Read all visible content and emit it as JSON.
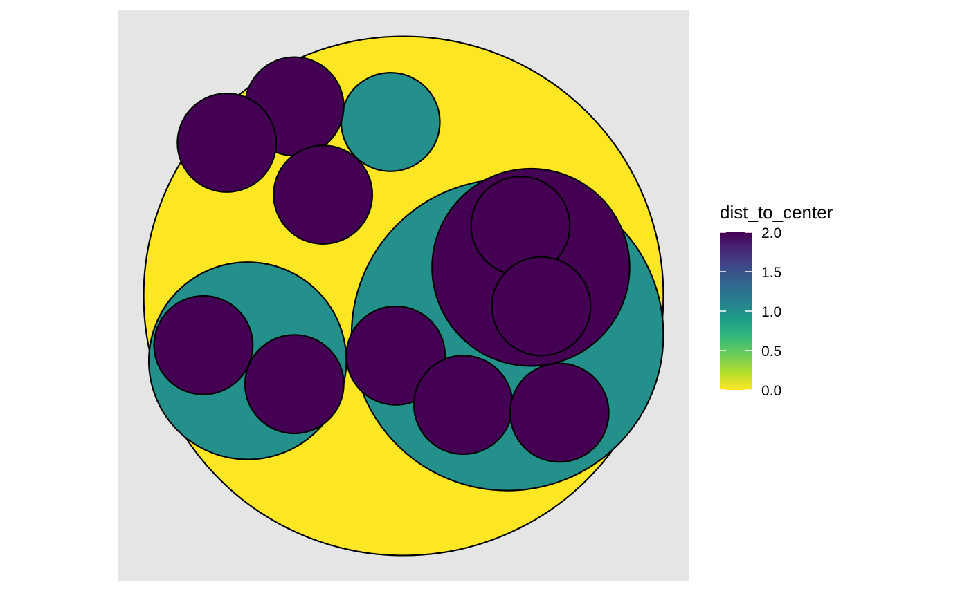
{
  "chart_data": {
    "type": "circle-packing",
    "coord_equal": true,
    "panel_background": "#E5E5E5",
    "outline_color": "#000000",
    "circles": [
      {
        "id": "root",
        "depth": 0,
        "dist_to_center": 0.0,
        "x": 0.0,
        "y": 0.0,
        "r": 1.0
      },
      {
        "id": "g1",
        "depth": 1,
        "dist_to_center": 1.0,
        "x": 0.4,
        "y": -0.15,
        "r": 0.6
      },
      {
        "id": "g2",
        "depth": 1,
        "dist_to_center": 1.0,
        "x": -0.6,
        "y": -0.25,
        "r": 0.38
      },
      {
        "id": "g3",
        "depth": 1,
        "dist_to_center": 1.0,
        "x": -0.05,
        "y": 0.67,
        "r": 0.19
      },
      {
        "id": "l1",
        "depth": 2,
        "dist_to_center": 2.0,
        "x": -0.42,
        "y": 0.73,
        "r": 0.19
      },
      {
        "id": "l2",
        "depth": 2,
        "dist_to_center": 2.0,
        "x": -0.68,
        "y": 0.59,
        "r": 0.19
      },
      {
        "id": "l3",
        "depth": 2,
        "dist_to_center": 2.0,
        "x": -0.31,
        "y": 0.39,
        "r": 0.19
      },
      {
        "id": "l4",
        "depth": 2,
        "dist_to_center": 2.0,
        "x": -0.77,
        "y": -0.19,
        "r": 0.19
      },
      {
        "id": "l5",
        "depth": 2,
        "dist_to_center": 2.0,
        "x": -0.42,
        "y": -0.34,
        "r": 0.19
      },
      {
        "id": "l6",
        "depth": 2,
        "dist_to_center": 2.0,
        "x": 0.49,
        "y": 0.11,
        "r": 0.38
      },
      {
        "id": "l7",
        "depth": 2,
        "dist_to_center": 2.0,
        "x": 0.45,
        "y": 0.27,
        "r": 0.19
      },
      {
        "id": "l8",
        "depth": 2,
        "dist_to_center": 2.0,
        "x": 0.53,
        "y": -0.04,
        "r": 0.19
      },
      {
        "id": "l9",
        "depth": 2,
        "dist_to_center": 2.0,
        "x": -0.03,
        "y": -0.23,
        "r": 0.19
      },
      {
        "id": "l10",
        "depth": 2,
        "dist_to_center": 2.0,
        "x": 0.23,
        "y": -0.42,
        "r": 0.19
      },
      {
        "id": "l11",
        "depth": 2,
        "dist_to_center": 2.0,
        "x": 0.6,
        "y": -0.45,
        "r": 0.19
      }
    ],
    "xlim": [
      -1.1,
      1.1
    ],
    "ylim": [
      -1.1,
      1.1
    ],
    "legend": {
      "title": "dist_to_center",
      "position": "right",
      "type": "colorbar",
      "scale": "viridis",
      "direction": -1,
      "domain": [
        0,
        2
      ],
      "breaks": [
        0.0,
        0.5,
        1.0,
        1.5,
        2.0
      ],
      "labels": [
        "0.0",
        "0.5",
        "1.0",
        "1.5",
        "2.0"
      ],
      "stops": [
        "#FDE725",
        "#B4DE2C",
        "#6DCD59",
        "#35B779",
        "#1F9E89",
        "#26828E",
        "#31688E",
        "#3E4A89",
        "#482878",
        "#440154"
      ]
    }
  }
}
